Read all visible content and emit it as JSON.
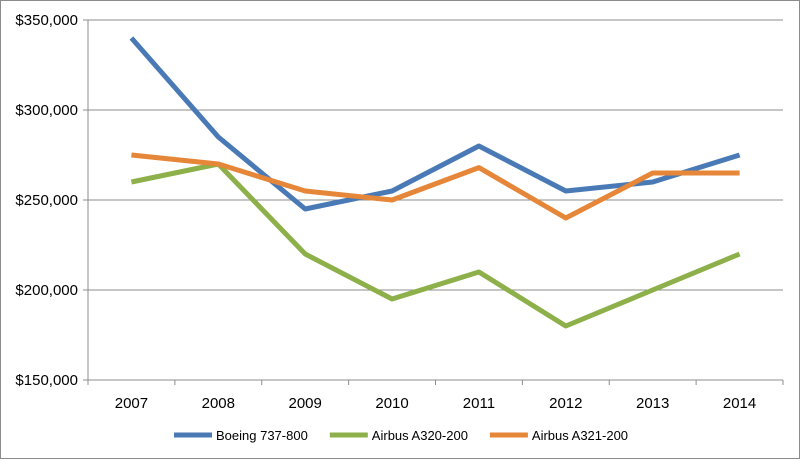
{
  "chart_data": {
    "type": "line",
    "categories": [
      "2007",
      "2008",
      "2009",
      "2010",
      "2011",
      "2012",
      "2013",
      "2014"
    ],
    "ylim": [
      150000,
      350000
    ],
    "yticks": [
      {
        "value": 150000,
        "label": "$150,000"
      },
      {
        "value": 200000,
        "label": "$200,000"
      },
      {
        "value": 250000,
        "label": "$250,000"
      },
      {
        "value": 300000,
        "label": "$300,000"
      },
      {
        "value": 350000,
        "label": "$350,000"
      }
    ],
    "grid": true,
    "legend_position": "bottom",
    "series": [
      {
        "name": "Boeing 737-800",
        "color": "#4a7ab5",
        "values": [
          340000,
          285000,
          245000,
          255000,
          280000,
          255000,
          260000,
          275000
        ]
      },
      {
        "name": "Airbus A320-200",
        "color": "#8db04a",
        "values": [
          260000,
          270000,
          220000,
          195000,
          210000,
          180000,
          200000,
          220000
        ]
      },
      {
        "name": "Airbus A321-200",
        "color": "#e58638",
        "values": [
          275000,
          270000,
          255000,
          250000,
          268000,
          240000,
          265000,
          265000
        ]
      }
    ]
  }
}
